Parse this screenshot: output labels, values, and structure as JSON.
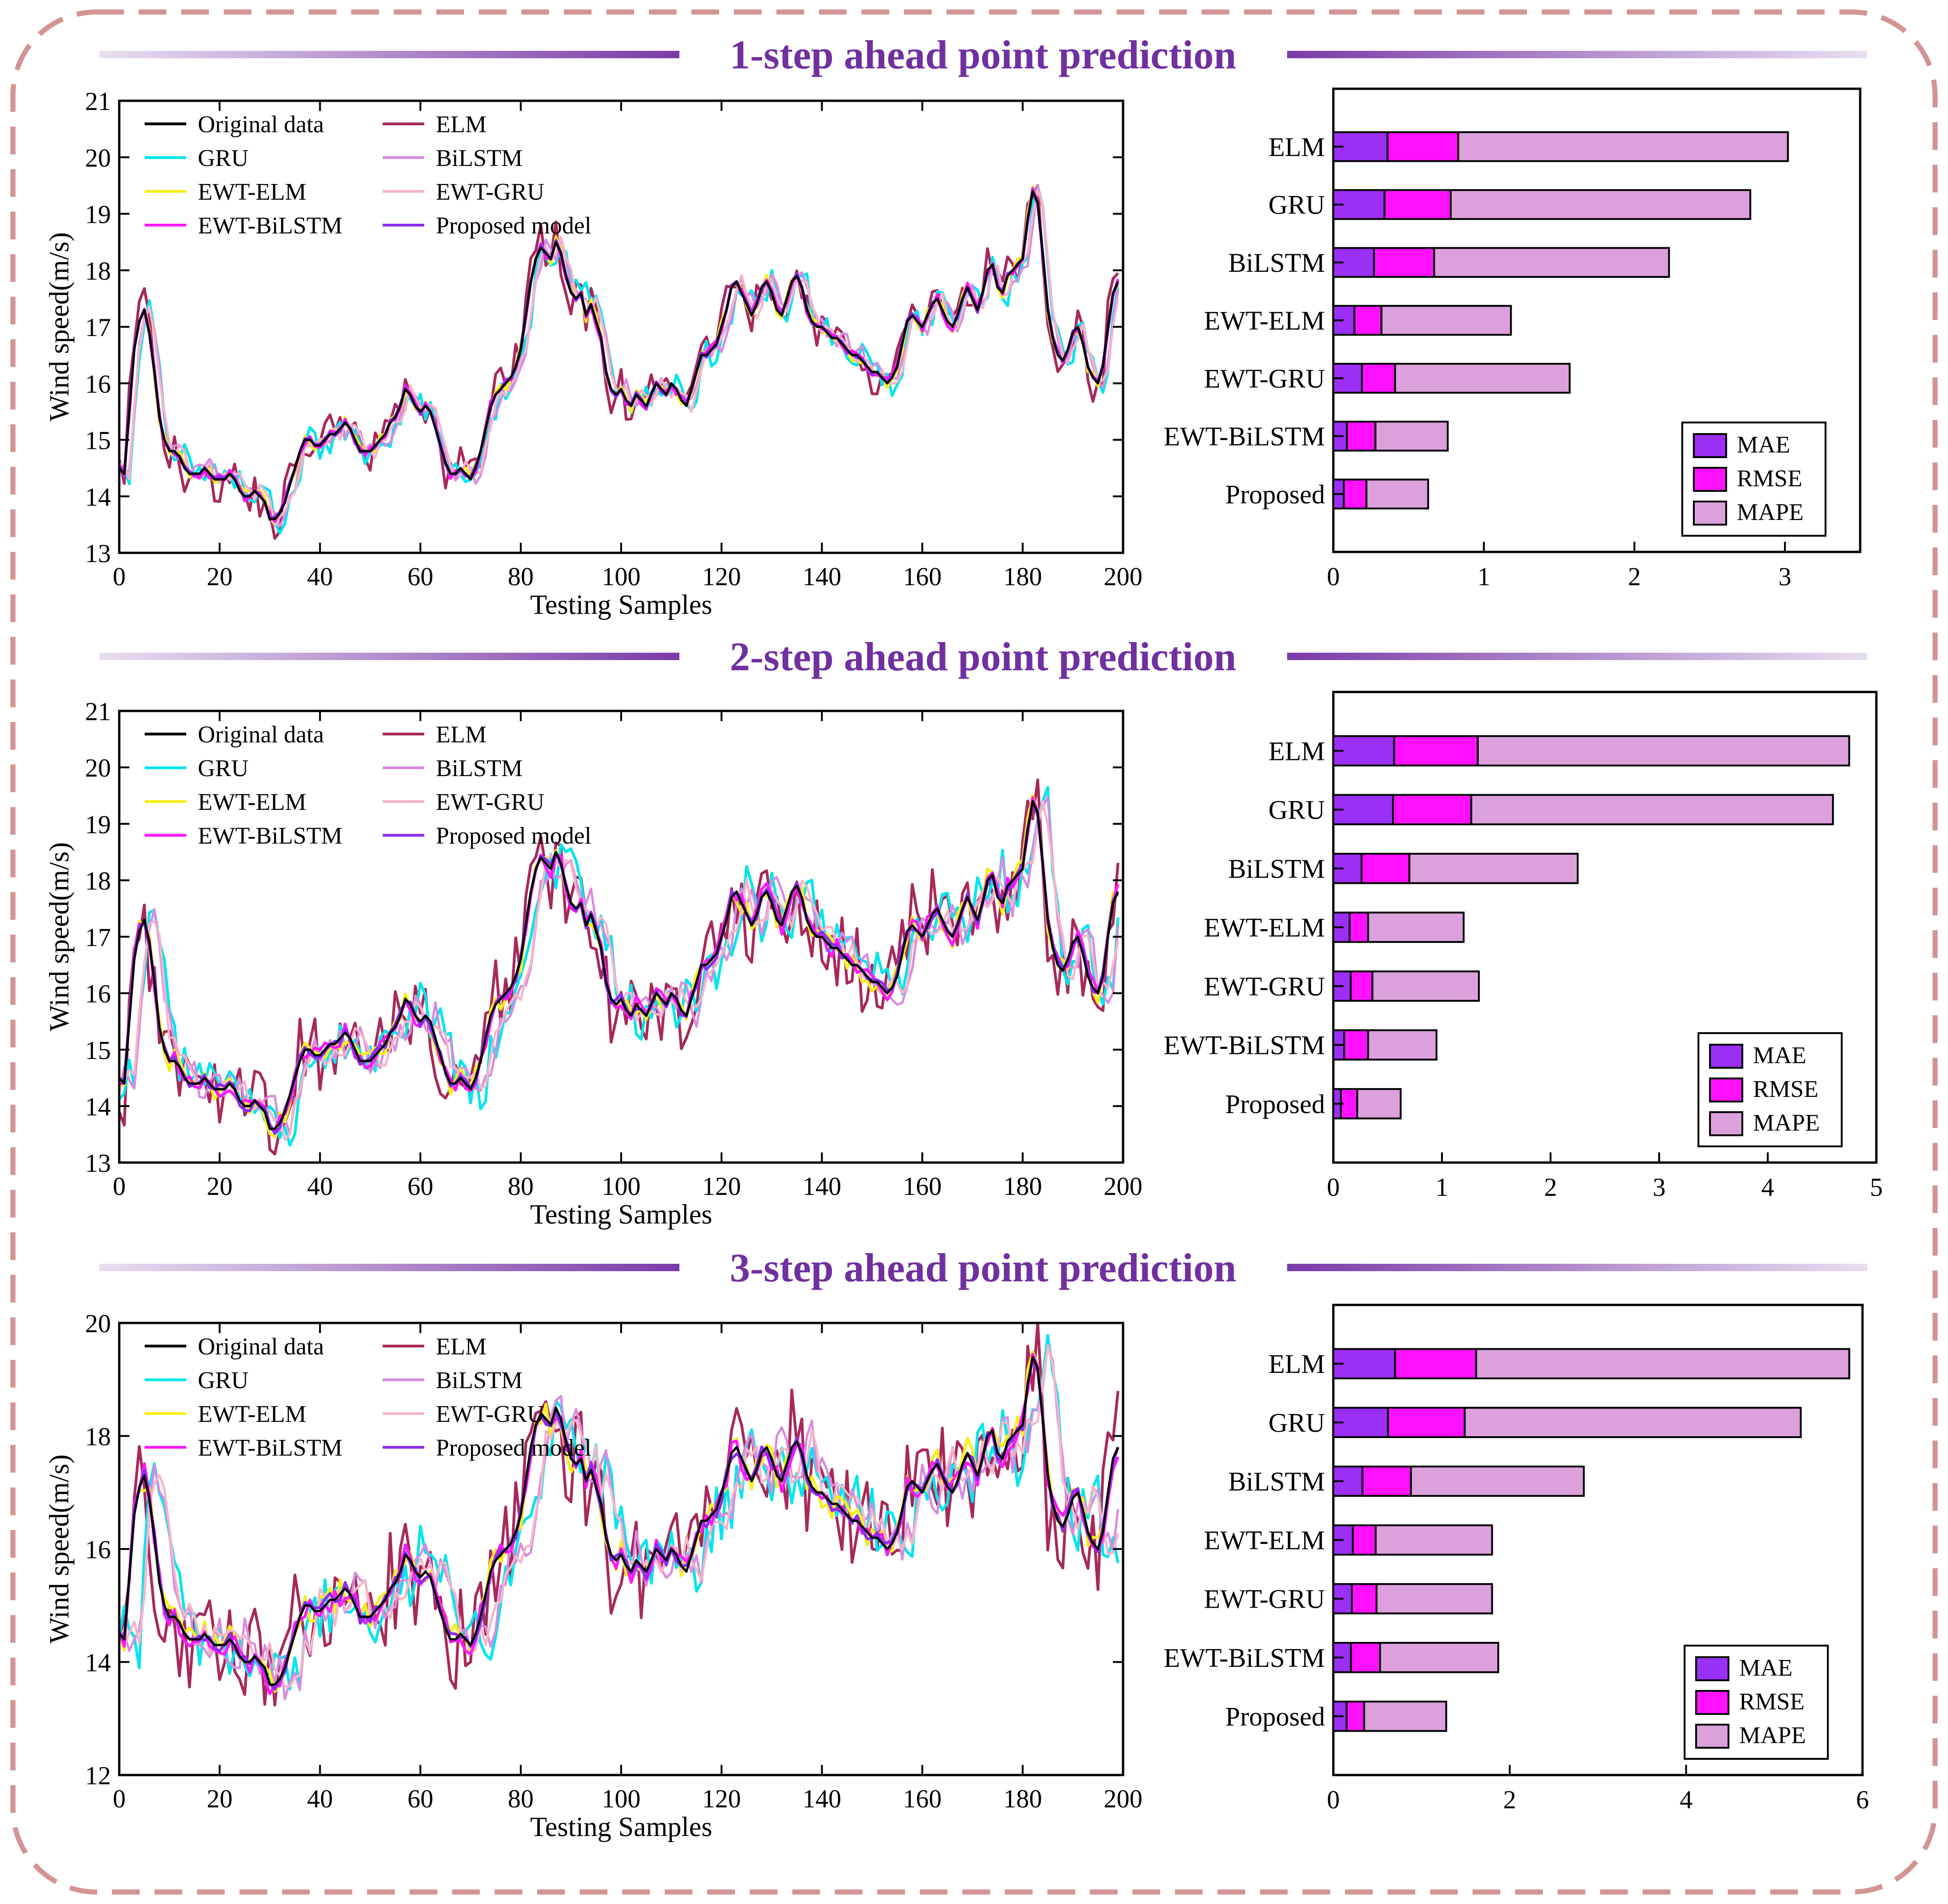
{
  "colors": {
    "frame": "#d39494",
    "title": "#7030a0",
    "Original data": "#000000",
    "GRU": "#00e5ee",
    "EWT-ELM": "#f7ef1a",
    "EWT-BiLSTM": "#ff17ff",
    "ELM": "#a8285a",
    "BiLSTM": "#d88be0",
    "EWT-GRU": "#f4b6c8",
    "Proposed model": "#8c2df0",
    "MAE": "#9b2ff5",
    "RMSE": "#ff10ff",
    "MAPE": "#dca0dc"
  },
  "chart_data": [
    {
      "type": "line",
      "title": "1-step ahead point prediction",
      "xlabel": "Testing Samples",
      "ylabel": "Wind speed(m/s)",
      "xlim": [
        0,
        200
      ],
      "ylim": [
        13,
        21
      ],
      "xticks": [
        "0",
        "20",
        "40",
        "60",
        "80",
        "100",
        "120",
        "140",
        "160",
        "180",
        "200"
      ],
      "yticks": [
        "13",
        "14",
        "15",
        "16",
        "17",
        "18",
        "19",
        "20",
        "21"
      ],
      "legend": [
        "Original data",
        "ELM",
        "GRU",
        "BiLSTM",
        "EWT-ELM",
        "EWT-GRU",
        "EWT-BiLSTM",
        "Proposed model"
      ],
      "noise": 0.25,
      "lag": 1
    },
    {
      "type": "line",
      "title": "2-step ahead point prediction",
      "xlabel": "Testing Samples",
      "ylabel": "Wind speed(m/s)",
      "xlim": [
        0,
        200
      ],
      "ylim": [
        13,
        21
      ],
      "xticks": [
        "0",
        "20",
        "40",
        "60",
        "80",
        "100",
        "120",
        "140",
        "160",
        "180",
        "200"
      ],
      "yticks": [
        "13",
        "14",
        "15",
        "16",
        "17",
        "18",
        "19",
        "20",
        "21"
      ],
      "legend": [
        "Original data",
        "ELM",
        "GRU",
        "BiLSTM",
        "EWT-ELM",
        "EWT-GRU",
        "EWT-BiLSTM",
        "Proposed model"
      ],
      "noise": 0.45,
      "lag": 2
    },
    {
      "type": "line",
      "title": "3-step ahead point prediction",
      "xlabel": "Testing Samples",
      "ylabel": "Wind speed(m/s)",
      "xlim": [
        0,
        200
      ],
      "ylim": [
        12,
        20
      ],
      "xticks": [
        "0",
        "20",
        "40",
        "60",
        "80",
        "100",
        "120",
        "140",
        "160",
        "180",
        "200"
      ],
      "yticks": [
        "12",
        "14",
        "16",
        "18",
        "20"
      ],
      "legend": [
        "Original data",
        "ELM",
        "GRU",
        "BiLSTM",
        "EWT-ELM",
        "EWT-GRU",
        "EWT-BiLSTM",
        "Proposed model"
      ],
      "noise": 0.6,
      "lag": 3
    },
    {
      "type": "bar",
      "stacked": true,
      "orientation": "horizontal",
      "categories": [
        "ELM",
        "GRU",
        "BiLSTM",
        "EWT-ELM",
        "EWT-GRU",
        "EWT-BiLSTM",
        "Proposed"
      ],
      "series": [
        {
          "name": "MAE",
          "values": [
            0.36,
            0.34,
            0.27,
            0.14,
            0.19,
            0.09,
            0.07
          ]
        },
        {
          "name": "RMSE",
          "values": [
            0.47,
            0.44,
            0.4,
            0.18,
            0.22,
            0.19,
            0.15
          ]
        },
        {
          "name": "MAPE",
          "values": [
            2.19,
            1.99,
            1.56,
            0.86,
            1.16,
            0.48,
            0.41
          ]
        }
      ],
      "xlim": [
        0,
        3.5
      ],
      "xticks": [
        "0",
        "1",
        "2",
        "3"
      ],
      "legend": [
        "MAE",
        "RMSE",
        "MAPE"
      ]
    },
    {
      "type": "bar",
      "stacked": true,
      "orientation": "horizontal",
      "categories": [
        "ELM",
        "GRU",
        "BiLSTM",
        "EWT-ELM",
        "EWT-GRU",
        "EWT-BiLSTM",
        "Proposed"
      ],
      "series": [
        {
          "name": "MAE",
          "values": [
            0.56,
            0.55,
            0.26,
            0.15,
            0.16,
            0.1,
            0.07
          ]
        },
        {
          "name": "RMSE",
          "values": [
            0.77,
            0.72,
            0.44,
            0.17,
            0.2,
            0.22,
            0.15
          ]
        },
        {
          "name": "MAPE",
          "values": [
            3.42,
            3.33,
            1.55,
            0.88,
            0.98,
            0.63,
            0.4
          ]
        }
      ],
      "xlim": [
        0,
        5
      ],
      "xticks": [
        "0",
        "1",
        "2",
        "3",
        "4",
        "5"
      ],
      "legend": [
        "MAE",
        "RMSE",
        "MAPE"
      ]
    },
    {
      "type": "bar",
      "stacked": true,
      "orientation": "horizontal",
      "categories": [
        "ELM",
        "GRU",
        "BiLSTM",
        "EWT-ELM",
        "EWT-GRU",
        "EWT-BiLSTM",
        "Proposed"
      ],
      "series": [
        {
          "name": "MAE",
          "values": [
            0.7,
            0.62,
            0.33,
            0.22,
            0.21,
            0.2,
            0.15
          ]
        },
        {
          "name": "RMSE",
          "values": [
            0.92,
            0.87,
            0.55,
            0.26,
            0.28,
            0.33,
            0.2
          ]
        },
        {
          "name": "MAPE",
          "values": [
            4.23,
            3.81,
            1.96,
            1.32,
            1.31,
            1.34,
            0.93
          ]
        }
      ],
      "xlim": [
        0,
        6
      ],
      "xticks": [
        "0",
        "2",
        "4",
        "6"
      ],
      "legend": [
        "MAE",
        "RMSE",
        "MAPE"
      ]
    }
  ],
  "original_data": {
    "name": "Original data",
    "x_step": 1,
    "values": [
      14.5,
      14.4,
      15.5,
      16.6,
      17.1,
      17.3,
      16.9,
      16.2,
      15.4,
      15.0,
      14.8,
      14.8,
      14.7,
      14.5,
      14.4,
      14.4,
      14.4,
      14.5,
      14.4,
      14.3,
      14.3,
      14.3,
      14.4,
      14.3,
      14.1,
      14.0,
      14.0,
      14.1,
      14.0,
      13.9,
      13.6,
      13.6,
      13.7,
      13.9,
      14.2,
      14.5,
      14.8,
      15.0,
      15.0,
      14.9,
      14.9,
      15.0,
      15.1,
      15.1,
      15.2,
      15.3,
      15.2,
      15.0,
      14.8,
      14.8,
      14.8,
      14.9,
      15.0,
      15.1,
      15.3,
      15.4,
      15.6,
      15.9,
      15.8,
      15.6,
      15.5,
      15.6,
      15.5,
      15.2,
      14.9,
      14.6,
      14.4,
      14.4,
      14.5,
      14.4,
      14.3,
      14.5,
      14.8,
      15.2,
      15.6,
      15.8,
      15.9,
      16.0,
      16.1,
      16.3,
      16.6,
      17.2,
      17.8,
      18.2,
      18.4,
      18.3,
      18.2,
      18.5,
      18.3,
      17.9,
      17.6,
      17.5,
      17.6,
      17.2,
      17.4,
      17.1,
      16.8,
      16.2,
      15.9,
      15.8,
      15.9,
      15.7,
      15.6,
      15.8,
      15.7,
      15.6,
      15.8,
      16.0,
      15.9,
      15.8,
      16.0,
      15.9,
      15.7,
      15.6,
      15.9,
      16.2,
      16.5,
      16.5,
      16.6,
      16.7,
      17.0,
      17.3,
      17.7,
      17.8,
      17.6,
      17.4,
      17.2,
      17.4,
      17.7,
      17.8,
      17.6,
      17.3,
      17.2,
      17.5,
      17.8,
      17.9,
      17.7,
      17.3,
      17.1,
      17.0,
      17.0,
      16.9,
      16.8,
      16.8,
      16.7,
      16.6,
      16.5,
      16.5,
      16.4,
      16.3,
      16.2,
      16.2,
      16.1,
      16.0,
      16.1,
      16.3,
      16.7,
      17.1,
      17.2,
      17.1,
      17.0,
      17.2,
      17.4,
      17.5,
      17.3,
      17.1,
      17.0,
      17.2,
      17.5,
      17.7,
      17.5,
      17.3,
      17.6,
      18.0,
      18.1,
      17.7,
      17.6,
      17.9,
      18.0,
      18.1,
      18.2,
      18.9,
      19.4,
      19.2,
      18.3,
      17.3,
      16.8,
      16.5,
      16.4,
      16.6,
      16.9,
      17.0,
      16.7,
      16.3,
      16.1,
      16.0,
      16.3,
      17.0,
      17.6,
      17.8
    ]
  },
  "model_order": [
    "ELM",
    "GRU",
    "BiLSTM",
    "EWT-ELM",
    "EWT-GRU",
    "EWT-BiLSTM",
    "Proposed model",
    "Original data"
  ],
  "axis_labels": {
    "wind": "Wind speed(m/s)",
    "samples": "Testing Samples"
  }
}
